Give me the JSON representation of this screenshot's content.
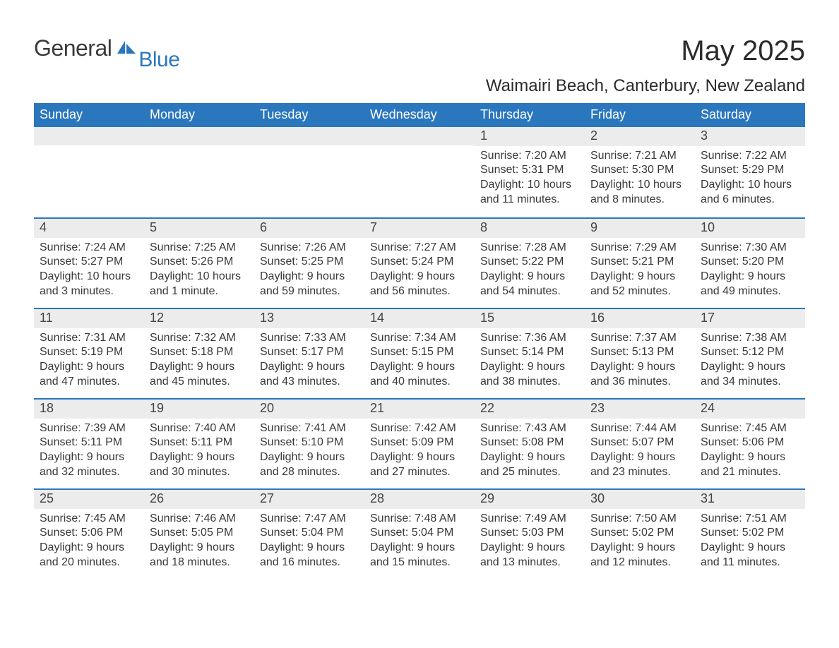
{
  "brand": {
    "word1": "General",
    "word2": "Blue",
    "word1_color": "#3a3a3a",
    "word2_color": "#2a77bd",
    "icon_color": "#2a77bd"
  },
  "title": "May 2025",
  "location": "Waimairi Beach, Canterbury, New Zealand",
  "colors": {
    "header_bg": "#2a77bd",
    "header_text": "#ffffff",
    "week_divider": "#2a77bd",
    "daynum_bg": "#ececec",
    "page_bg": "#ffffff",
    "body_text": "#393939",
    "title_text": "#2b2b2b"
  },
  "fonts": {
    "month_title_pt": 40,
    "location_pt": 24,
    "dow_pt": 18,
    "daynum_pt": 18,
    "body_pt": 16
  },
  "labels": {
    "sunrise": "Sunrise",
    "sunset": "Sunset",
    "daylight": "Daylight"
  },
  "days_of_week": [
    "Sunday",
    "Monday",
    "Tuesday",
    "Wednesday",
    "Thursday",
    "Friday",
    "Saturday"
  ],
  "weeks": [
    [
      {
        "n": "",
        "sunrise": "",
        "sunset": "",
        "daylight": ""
      },
      {
        "n": "",
        "sunrise": "",
        "sunset": "",
        "daylight": ""
      },
      {
        "n": "",
        "sunrise": "",
        "sunset": "",
        "daylight": ""
      },
      {
        "n": "",
        "sunrise": "",
        "sunset": "",
        "daylight": ""
      },
      {
        "n": "1",
        "sunrise": "7:20 AM",
        "sunset": "5:31 PM",
        "daylight": "10 hours and 11 minutes."
      },
      {
        "n": "2",
        "sunrise": "7:21 AM",
        "sunset": "5:30 PM",
        "daylight": "10 hours and 8 minutes."
      },
      {
        "n": "3",
        "sunrise": "7:22 AM",
        "sunset": "5:29 PM",
        "daylight": "10 hours and 6 minutes."
      }
    ],
    [
      {
        "n": "4",
        "sunrise": "7:24 AM",
        "sunset": "5:27 PM",
        "daylight": "10 hours and 3 minutes."
      },
      {
        "n": "5",
        "sunrise": "7:25 AM",
        "sunset": "5:26 PM",
        "daylight": "10 hours and 1 minute."
      },
      {
        "n": "6",
        "sunrise": "7:26 AM",
        "sunset": "5:25 PM",
        "daylight": "9 hours and 59 minutes."
      },
      {
        "n": "7",
        "sunrise": "7:27 AM",
        "sunset": "5:24 PM",
        "daylight": "9 hours and 56 minutes."
      },
      {
        "n": "8",
        "sunrise": "7:28 AM",
        "sunset": "5:22 PM",
        "daylight": "9 hours and 54 minutes."
      },
      {
        "n": "9",
        "sunrise": "7:29 AM",
        "sunset": "5:21 PM",
        "daylight": "9 hours and 52 minutes."
      },
      {
        "n": "10",
        "sunrise": "7:30 AM",
        "sunset": "5:20 PM",
        "daylight": "9 hours and 49 minutes."
      }
    ],
    [
      {
        "n": "11",
        "sunrise": "7:31 AM",
        "sunset": "5:19 PM",
        "daylight": "9 hours and 47 minutes."
      },
      {
        "n": "12",
        "sunrise": "7:32 AM",
        "sunset": "5:18 PM",
        "daylight": "9 hours and 45 minutes."
      },
      {
        "n": "13",
        "sunrise": "7:33 AM",
        "sunset": "5:17 PM",
        "daylight": "9 hours and 43 minutes."
      },
      {
        "n": "14",
        "sunrise": "7:34 AM",
        "sunset": "5:15 PM",
        "daylight": "9 hours and 40 minutes."
      },
      {
        "n": "15",
        "sunrise": "7:36 AM",
        "sunset": "5:14 PM",
        "daylight": "9 hours and 38 minutes."
      },
      {
        "n": "16",
        "sunrise": "7:37 AM",
        "sunset": "5:13 PM",
        "daylight": "9 hours and 36 minutes."
      },
      {
        "n": "17",
        "sunrise": "7:38 AM",
        "sunset": "5:12 PM",
        "daylight": "9 hours and 34 minutes."
      }
    ],
    [
      {
        "n": "18",
        "sunrise": "7:39 AM",
        "sunset": "5:11 PM",
        "daylight": "9 hours and 32 minutes."
      },
      {
        "n": "19",
        "sunrise": "7:40 AM",
        "sunset": "5:11 PM",
        "daylight": "9 hours and 30 minutes."
      },
      {
        "n": "20",
        "sunrise": "7:41 AM",
        "sunset": "5:10 PM",
        "daylight": "9 hours and 28 minutes."
      },
      {
        "n": "21",
        "sunrise": "7:42 AM",
        "sunset": "5:09 PM",
        "daylight": "9 hours and 27 minutes."
      },
      {
        "n": "22",
        "sunrise": "7:43 AM",
        "sunset": "5:08 PM",
        "daylight": "9 hours and 25 minutes."
      },
      {
        "n": "23",
        "sunrise": "7:44 AM",
        "sunset": "5:07 PM",
        "daylight": "9 hours and 23 minutes."
      },
      {
        "n": "24",
        "sunrise": "7:45 AM",
        "sunset": "5:06 PM",
        "daylight": "9 hours and 21 minutes."
      }
    ],
    [
      {
        "n": "25",
        "sunrise": "7:45 AM",
        "sunset": "5:06 PM",
        "daylight": "9 hours and 20 minutes."
      },
      {
        "n": "26",
        "sunrise": "7:46 AM",
        "sunset": "5:05 PM",
        "daylight": "9 hours and 18 minutes."
      },
      {
        "n": "27",
        "sunrise": "7:47 AM",
        "sunset": "5:04 PM",
        "daylight": "9 hours and 16 minutes."
      },
      {
        "n": "28",
        "sunrise": "7:48 AM",
        "sunset": "5:04 PM",
        "daylight": "9 hours and 15 minutes."
      },
      {
        "n": "29",
        "sunrise": "7:49 AM",
        "sunset": "5:03 PM",
        "daylight": "9 hours and 13 minutes."
      },
      {
        "n": "30",
        "sunrise": "7:50 AM",
        "sunset": "5:02 PM",
        "daylight": "9 hours and 12 minutes."
      },
      {
        "n": "31",
        "sunrise": "7:51 AM",
        "sunset": "5:02 PM",
        "daylight": "9 hours and 11 minutes."
      }
    ]
  ]
}
